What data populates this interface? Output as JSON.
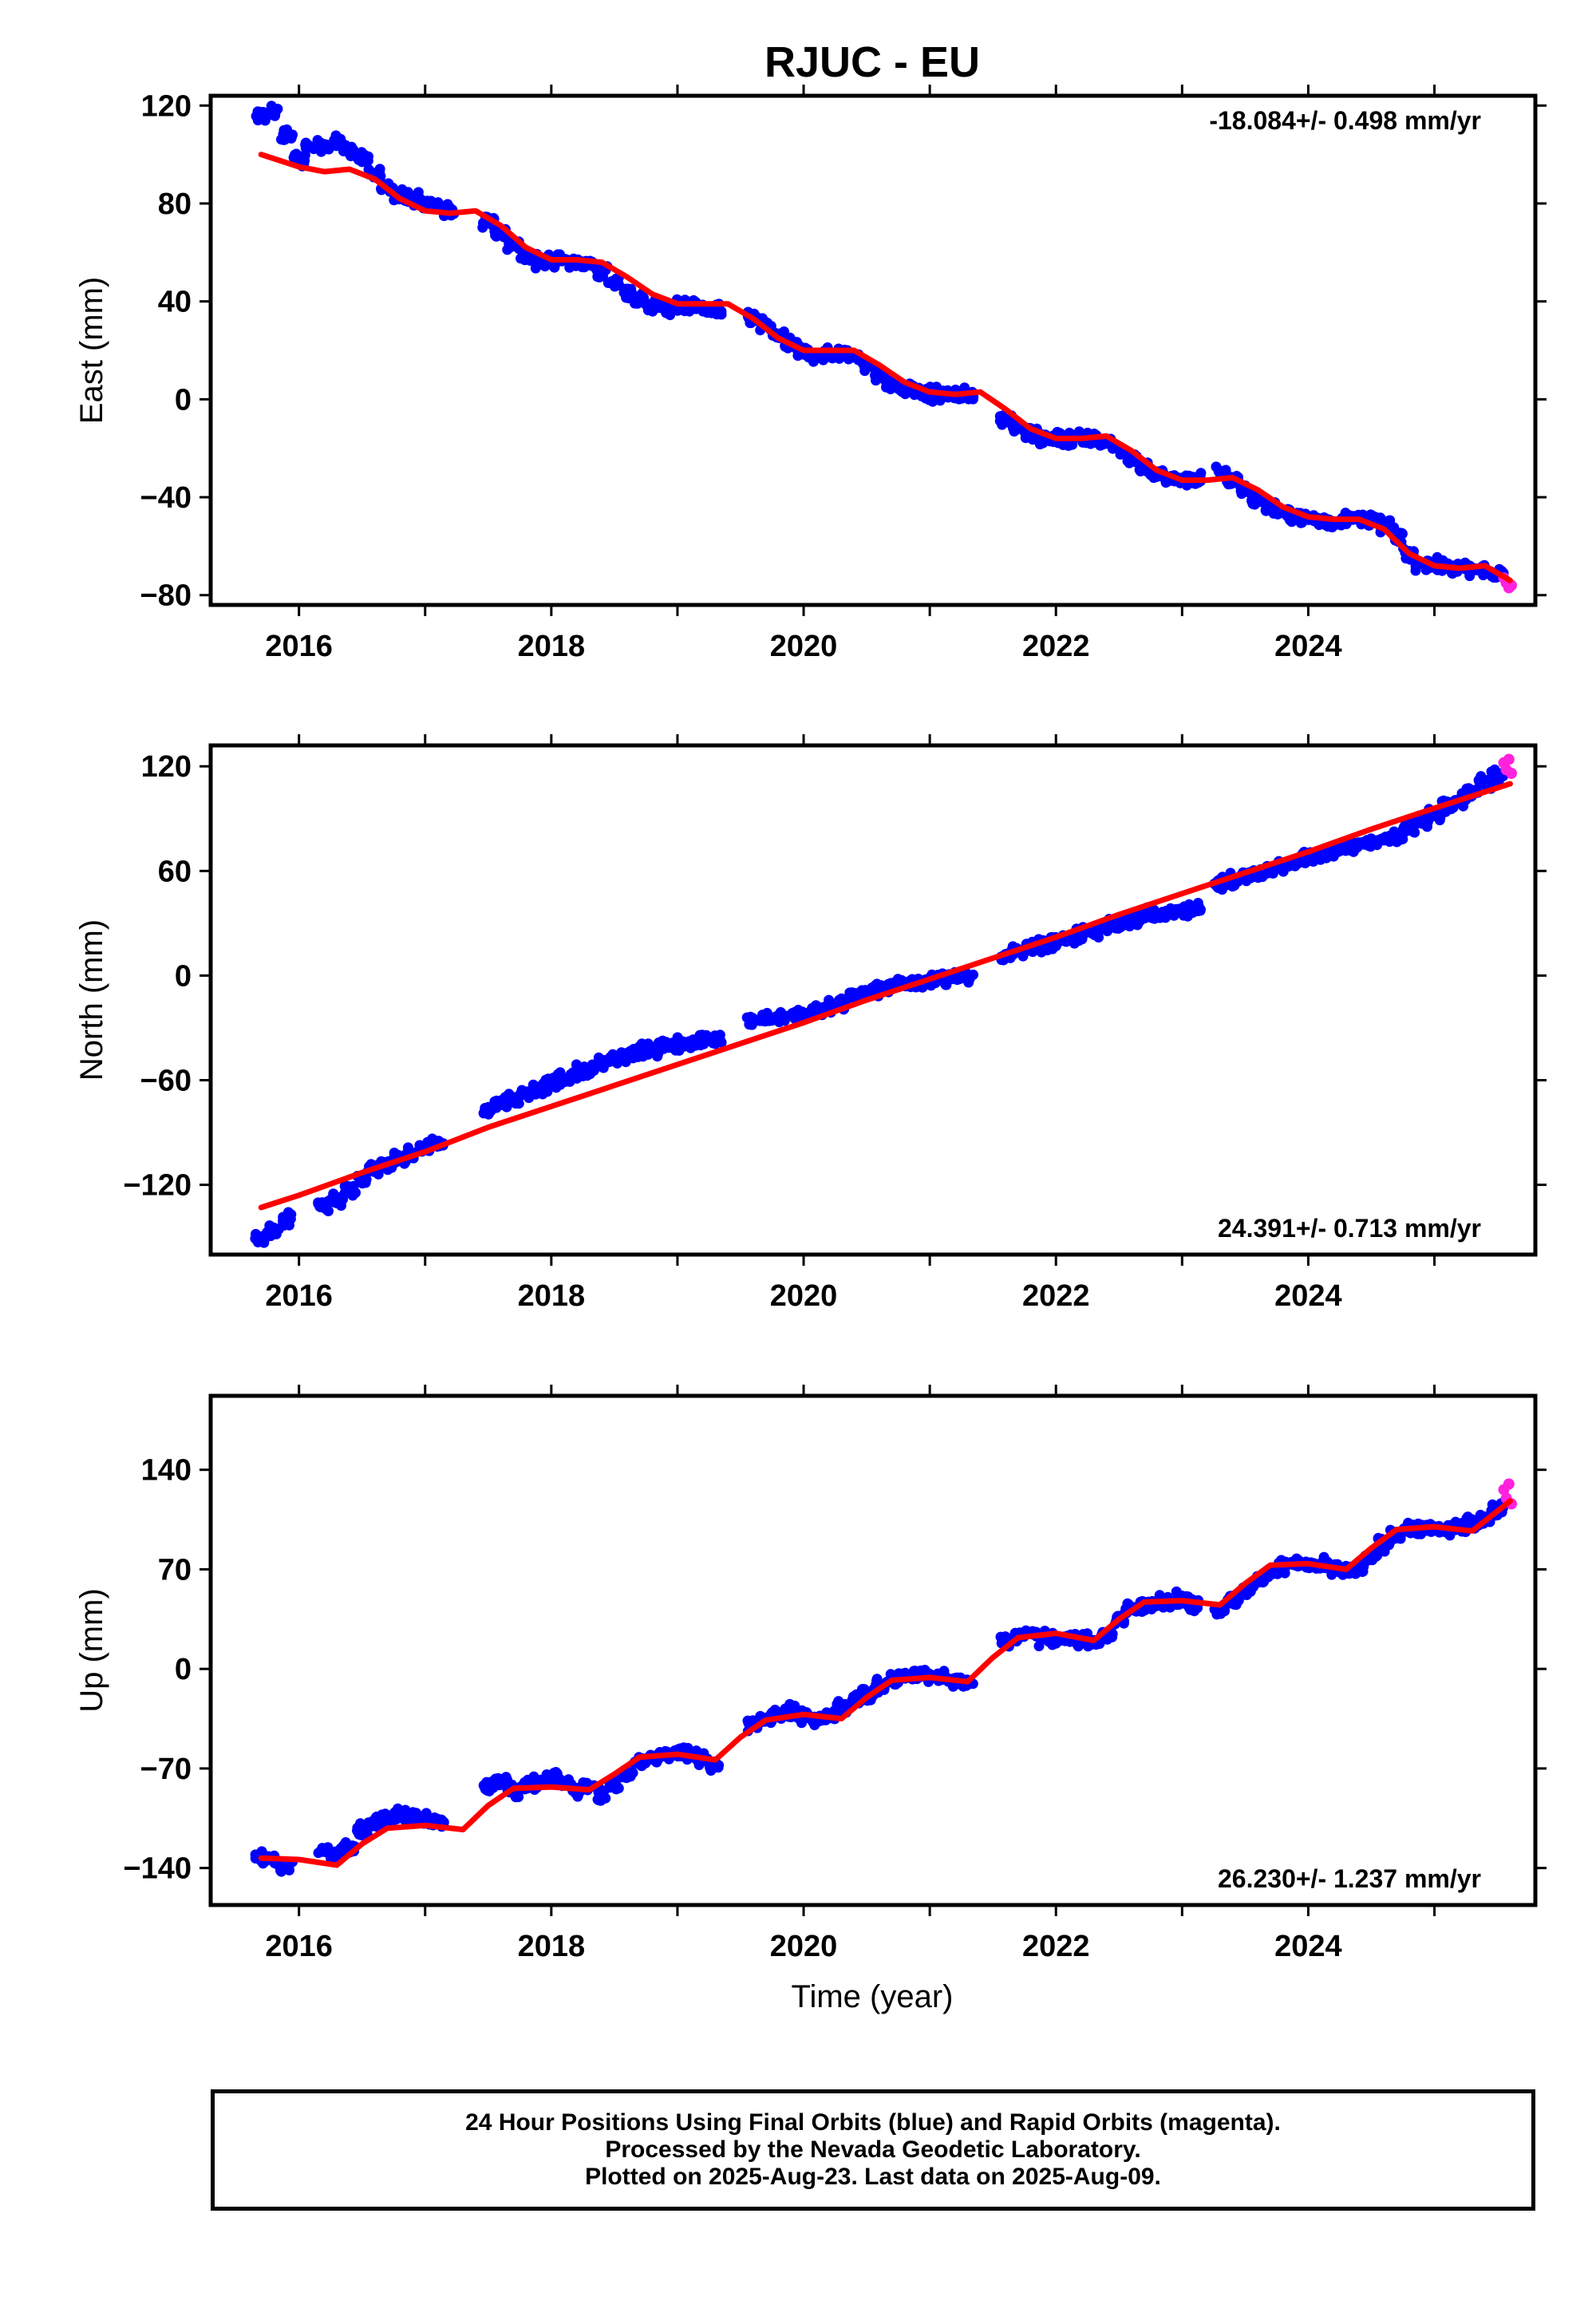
{
  "title": "RJUC - EU",
  "x_tick_labels": [
    "2016",
    "2018",
    "2020",
    "2022",
    "2024"
  ],
  "x_axis_label": "Time (year)",
  "colors": {
    "final_orbits": "#0000ff",
    "rapid_orbits": "#ff22dd",
    "model_fit": "#ff0000",
    "frame": "#000000"
  },
  "footer": {
    "line1": "24 Hour Positions Using Final Orbits (blue) and Rapid Orbits (magenta).",
    "line2": "Processed by the Nevada Geodetic Laboratory.",
    "line3": "Plotted on 2025-Aug-23. Last data on 2025-Aug-09."
  },
  "chart_data": [
    {
      "type": "scatter",
      "component": "east",
      "ylabel": "East (mm)",
      "xlim": [
        2015.3,
        2025.8
      ],
      "ylim": [
        -84,
        124
      ],
      "y_ticks": [
        120,
        80,
        40,
        0,
        -40,
        -80
      ],
      "y_tick_labels": [
        "120",
        "80",
        "40",
        "0",
        "−40",
        "−80"
      ],
      "rate_label": "-18.084+/- 0.498 mm/yr",
      "rate_label_position": "top-right",
      "series": [
        {
          "role": "final_orbits",
          "x": [
            2015.7,
            2015.8,
            2015.9,
            2016.0,
            2016.1,
            2016.2,
            2016.3,
            2016.4,
            2016.5,
            2016.6,
            2016.7,
            2016.8,
            2016.9,
            2017.0,
            2017.1,
            2017.2,
            2017.5,
            2017.6,
            2017.7,
            2017.8,
            2017.9,
            2018.0,
            2018.1,
            2018.2,
            2018.3,
            2018.4,
            2018.5,
            2018.6,
            2018.7,
            2018.8,
            2018.9,
            2019.0,
            2019.1,
            2019.2,
            2019.3,
            2019.6,
            2019.7,
            2019.8,
            2019.9,
            2020.0,
            2020.1,
            2020.2,
            2020.3,
            2020.4,
            2020.5,
            2020.6,
            2020.7,
            2020.8,
            2020.9,
            2021.0,
            2021.1,
            2021.2,
            2021.3,
            2021.6,
            2021.7,
            2021.8,
            2021.9,
            2022.0,
            2022.1,
            2022.2,
            2022.3,
            2022.4,
            2022.5,
            2022.6,
            2022.7,
            2022.8,
            2022.9,
            2023.0,
            2023.1,
            2023.3,
            2023.4,
            2023.5,
            2023.6,
            2023.7,
            2023.8,
            2023.9,
            2024.0,
            2024.1,
            2024.2,
            2024.3,
            2024.4,
            2024.5,
            2024.6,
            2024.7,
            2024.8,
            2024.9,
            2025.0,
            2025.1,
            2025.2,
            2025.3,
            2025.4,
            2025.5
          ],
          "y": [
            116,
            117,
            108,
            98,
            103,
            104,
            105,
            102,
            98,
            92,
            87,
            84,
            82,
            80,
            79,
            77,
            73,
            68,
            63,
            58,
            56,
            57,
            57,
            56,
            55,
            52,
            48,
            44,
            41,
            38,
            37,
            38,
            38,
            37,
            36,
            33,
            30,
            26,
            22,
            19,
            18,
            18,
            19,
            18,
            14,
            10,
            6,
            4,
            3,
            2,
            2,
            2,
            2,
            -8,
            -11,
            -14,
            -16,
            -16,
            -16,
            -16,
            -16,
            -17,
            -20,
            -24,
            -28,
            -31,
            -32,
            -33,
            -32,
            -30,
            -33,
            -37,
            -41,
            -44,
            -46,
            -48,
            -49,
            -50,
            -50,
            -49,
            -49,
            -49,
            -51,
            -56,
            -63,
            -67,
            -68,
            -69,
            -69,
            -69,
            -70,
            -72
          ]
        },
        {
          "role": "rapid_orbits",
          "x": [
            2025.55,
            2025.57,
            2025.59,
            2025.61
          ],
          "y": [
            -73,
            -75,
            -77,
            -76
          ]
        },
        {
          "role": "model_fit",
          "x": [
            2015.7,
            2016.0,
            2016.2,
            2016.4,
            2016.6,
            2016.8,
            2017.0,
            2017.2,
            2017.4,
            2017.6,
            2017.8,
            2018.0,
            2018.2,
            2018.4,
            2018.6,
            2018.8,
            2019.0,
            2019.2,
            2019.4,
            2019.6,
            2019.8,
            2020.0,
            2020.2,
            2020.4,
            2020.6,
            2020.8,
            2021.0,
            2021.2,
            2021.4,
            2021.6,
            2021.8,
            2022.0,
            2022.2,
            2022.4,
            2022.6,
            2022.8,
            2023.0,
            2023.2,
            2023.4,
            2023.6,
            2023.8,
            2024.0,
            2024.2,
            2024.4,
            2024.6,
            2024.8,
            2025.0,
            2025.2,
            2025.4,
            2025.6
          ],
          "y": [
            100,
            95,
            93,
            94,
            90,
            82,
            77,
            76,
            77,
            71,
            62,
            57,
            57,
            56,
            50,
            43,
            39,
            39,
            39,
            33,
            25,
            20,
            20,
            20,
            14,
            7,
            3,
            2,
            3,
            -4,
            -12,
            -16,
            -16,
            -15,
            -21,
            -29,
            -33,
            -33,
            -32,
            -37,
            -44,
            -48,
            -49,
            -49,
            -53,
            -63,
            -68,
            -69,
            -68,
            -74
          ]
        }
      ]
    },
    {
      "type": "scatter",
      "component": "north",
      "ylabel": "North (mm)",
      "xlim": [
        2015.3,
        2025.8
      ],
      "ylim": [
        -160,
        132
      ],
      "y_ticks": [
        120,
        60,
        0,
        -60,
        -120
      ],
      "y_tick_labels": [
        "120",
        "60",
        "0",
        "−60",
        "−120"
      ],
      "rate_label": "24.391+/- 0.713 mm/yr",
      "rate_label_position": "bottom-right",
      "series": [
        {
          "role": "final_orbits",
          "x": [
            2015.7,
            2015.8,
            2015.9,
            2016.2,
            2016.3,
            2016.4,
            2016.5,
            2016.6,
            2016.7,
            2016.8,
            2016.9,
            2017.0,
            2017.1,
            2017.5,
            2017.6,
            2017.7,
            2017.8,
            2017.9,
            2018.0,
            2018.1,
            2018.2,
            2018.3,
            2018.4,
            2018.5,
            2018.6,
            2018.7,
            2018.8,
            2018.9,
            2019.0,
            2019.1,
            2019.2,
            2019.3,
            2019.6,
            2019.7,
            2019.8,
            2019.9,
            2020.0,
            2020.1,
            2020.2,
            2020.3,
            2020.4,
            2020.5,
            2020.6,
            2020.7,
            2020.8,
            2020.9,
            2021.0,
            2021.1,
            2021.2,
            2021.3,
            2021.6,
            2021.7,
            2021.8,
            2021.9,
            2022.0,
            2022.1,
            2022.2,
            2022.3,
            2022.4,
            2022.5,
            2022.6,
            2022.7,
            2022.8,
            2022.9,
            2023.0,
            2023.1,
            2023.3,
            2023.4,
            2023.5,
            2023.6,
            2023.7,
            2023.8,
            2023.9,
            2024.0,
            2024.1,
            2024.2,
            2024.3,
            2024.4,
            2024.5,
            2024.6,
            2024.7,
            2024.8,
            2024.9,
            2025.0,
            2025.1,
            2025.2,
            2025.3,
            2025.4,
            2025.5
          ],
          "y": [
            -150,
            -145,
            -140,
            -132,
            -128,
            -122,
            -116,
            -111,
            -108,
            -105,
            -102,
            -99,
            -96,
            -78,
            -74,
            -71,
            -68,
            -65,
            -62,
            -59,
            -56,
            -54,
            -51,
            -48,
            -46,
            -44,
            -42,
            -40,
            -39,
            -38,
            -37,
            -37,
            -26,
            -25,
            -24,
            -23,
            -22,
            -20,
            -18,
            -15,
            -12,
            -10,
            -8,
            -6,
            -5,
            -4,
            -3,
            -2,
            -1,
            0,
            12,
            14,
            16,
            18,
            19,
            21,
            23,
            25,
            28,
            30,
            32,
            34,
            35,
            36,
            37,
            38,
            53,
            55,
            57,
            59,
            61,
            63,
            65,
            67,
            69,
            71,
            73,
            75,
            76,
            78,
            80,
            84,
            88,
            93,
            97,
            101,
            105,
            110,
            115
          ]
        },
        {
          "role": "rapid_orbits",
          "x": [
            2025.55,
            2025.57,
            2025.59,
            2025.61
          ],
          "y": [
            122,
            118,
            124,
            116
          ]
        },
        {
          "role": "model_fit",
          "x": [
            2015.7,
            2016.0,
            2016.5,
            2017.0,
            2017.5,
            2018.0,
            2018.5,
            2019.0,
            2019.5,
            2020.0,
            2020.5,
            2021.0,
            2021.5,
            2022.0,
            2022.5,
            2023.0,
            2023.5,
            2024.0,
            2024.5,
            2025.0,
            2025.6
          ],
          "y": [
            -133,
            -126,
            -113,
            -101,
            -87,
            -75,
            -63,
            -51,
            -39,
            -27,
            -14,
            -2,
            10,
            22,
            35,
            47,
            59,
            71,
            84,
            96,
            110
          ]
        }
      ]
    },
    {
      "type": "scatter",
      "component": "up",
      "ylabel": "Up (mm)",
      "xlim": [
        2015.3,
        2025.8
      ],
      "ylim": [
        -166,
        192
      ],
      "y_ticks": [
        140,
        70,
        0,
        -70,
        -140
      ],
      "y_tick_labels": [
        "140",
        "70",
        "0",
        "−70",
        "−140"
      ],
      "rate_label": "26.230+/- 1.237 mm/yr",
      "rate_label_position": "bottom-right",
      "series": [
        {
          "role": "final_orbits",
          "x": [
            2015.7,
            2015.8,
            2015.9,
            2016.2,
            2016.3,
            2016.4,
            2016.5,
            2016.6,
            2016.7,
            2016.8,
            2016.9,
            2017.0,
            2017.1,
            2017.5,
            2017.6,
            2017.7,
            2017.8,
            2017.9,
            2018.0,
            2018.1,
            2018.2,
            2018.3,
            2018.4,
            2018.5,
            2018.6,
            2018.7,
            2018.8,
            2018.9,
            2019.0,
            2019.1,
            2019.2,
            2019.3,
            2019.6,
            2019.7,
            2019.8,
            2019.9,
            2020.0,
            2020.1,
            2020.2,
            2020.3,
            2020.4,
            2020.5,
            2020.6,
            2020.7,
            2020.8,
            2020.9,
            2021.0,
            2021.1,
            2021.2,
            2021.3,
            2021.6,
            2021.7,
            2021.8,
            2021.9,
            2022.0,
            2022.1,
            2022.2,
            2022.3,
            2022.4,
            2022.5,
            2022.6,
            2022.7,
            2022.8,
            2022.9,
            2023.0,
            2023.1,
            2023.3,
            2023.4,
            2023.5,
            2023.6,
            2023.7,
            2023.8,
            2023.9,
            2024.0,
            2024.1,
            2024.2,
            2024.3,
            2024.4,
            2024.5,
            2024.6,
            2024.7,
            2024.8,
            2024.9,
            2025.0,
            2025.1,
            2025.2,
            2025.3,
            2025.4,
            2025.5
          ],
          "y": [
            -133,
            -135,
            -138,
            -128,
            -132,
            -125,
            -115,
            -108,
            -105,
            -103,
            -104,
            -106,
            -108,
            -82,
            -78,
            -85,
            -82,
            -80,
            -77,
            -80,
            -84,
            -83,
            -88,
            -80,
            -75,
            -65,
            -62,
            -60,
            -58,
            -60,
            -64,
            -68,
            -40,
            -35,
            -32,
            -30,
            -33,
            -36,
            -32,
            -28,
            -22,
            -18,
            -12,
            -8,
            -5,
            -4,
            -5,
            -6,
            -8,
            -10,
            20,
            23,
            25,
            22,
            20,
            22,
            20,
            18,
            25,
            35,
            42,
            45,
            47,
            46,
            48,
            45,
            42,
            48,
            55,
            62,
            68,
            72,
            74,
            73,
            72,
            70,
            69,
            70,
            78,
            88,
            95,
            98,
            99,
            98,
            98,
            100,
            102,
            106,
            112
          ]
        },
        {
          "role": "rapid_orbits",
          "x": [
            2025.55,
            2025.57,
            2025.59,
            2025.61
          ],
          "y": [
            126,
            120,
            130,
            116
          ]
        },
        {
          "role": "model_fit",
          "x": [
            2015.7,
            2016.0,
            2016.3,
            2016.5,
            2016.7,
            2017.0,
            2017.3,
            2017.5,
            2017.7,
            2018.0,
            2018.3,
            2018.5,
            2018.7,
            2019.0,
            2019.3,
            2019.5,
            2019.7,
            2020.0,
            2020.3,
            2020.5,
            2020.7,
            2021.0,
            2021.3,
            2021.5,
            2021.7,
            2022.0,
            2022.3,
            2022.5,
            2022.7,
            2023.0,
            2023.3,
            2023.5,
            2023.7,
            2024.0,
            2024.3,
            2024.5,
            2024.7,
            2025.0,
            2025.3,
            2025.6
          ],
          "y": [
            -133,
            -134,
            -138,
            -123,
            -112,
            -110,
            -113,
            -96,
            -84,
            -83,
            -85,
            -74,
            -62,
            -60,
            -64,
            -48,
            -36,
            -32,
            -35,
            -20,
            -8,
            -6,
            -9,
            8,
            22,
            25,
            20,
            35,
            47,
            48,
            45,
            60,
            73,
            74,
            70,
            85,
            98,
            100,
            97,
            118
          ]
        }
      ]
    }
  ]
}
